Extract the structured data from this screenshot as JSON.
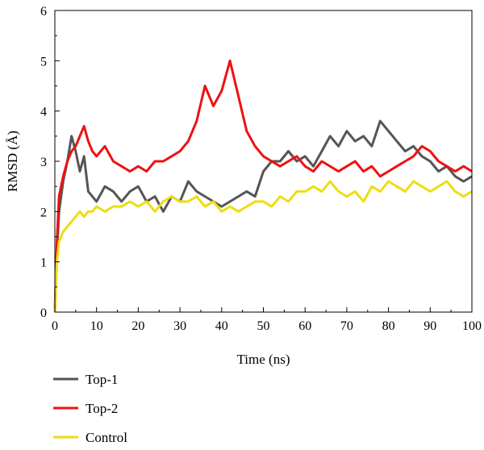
{
  "chart_data": {
    "type": "line",
    "xlabel": "Time (ns)",
    "ylabel": "RMSD (Å)",
    "xlim": [
      0,
      100
    ],
    "ylim": [
      0,
      6
    ],
    "xticks": [
      0,
      10,
      20,
      30,
      40,
      50,
      60,
      70,
      80,
      90,
      100
    ],
    "yticks": [
      0,
      1,
      2,
      3,
      4,
      5,
      6
    ],
    "grid": false,
    "legend_position": "bottom-left, below plot",
    "series": [
      {
        "name": "Top-1",
        "color": "#555555",
        "x": [
          0,
          0.5,
          1,
          2,
          3,
          4,
          5,
          6,
          7,
          8,
          9,
          10,
          12,
          14,
          16,
          18,
          20,
          22,
          24,
          26,
          28,
          30,
          32,
          34,
          36,
          38,
          40,
          42,
          44,
          46,
          48,
          50,
          52,
          54,
          56,
          58,
          60,
          62,
          64,
          66,
          68,
          70,
          72,
          74,
          76,
          78,
          80,
          82,
          84,
          86,
          88,
          90,
          92,
          94,
          96,
          98,
          100
        ],
        "y": [
          0,
          1.2,
          2.0,
          2.6,
          3.0,
          3.5,
          3.2,
          2.8,
          3.1,
          2.4,
          2.3,
          2.2,
          2.5,
          2.4,
          2.2,
          2.4,
          2.5,
          2.2,
          2.3,
          2.0,
          2.3,
          2.2,
          2.6,
          2.4,
          2.3,
          2.2,
          2.1,
          2.2,
          2.3,
          2.4,
          2.3,
          2.8,
          3.0,
          3.0,
          3.2,
          3.0,
          3.1,
          2.9,
          3.2,
          3.5,
          3.3,
          3.6,
          3.4,
          3.5,
          3.3,
          3.8,
          3.6,
          3.4,
          3.2,
          3.3,
          3.1,
          3.0,
          2.8,
          2.9,
          2.7,
          2.6,
          2.7
        ]
      },
      {
        "name": "Top-2",
        "color": "#ee1111",
        "x": [
          0,
          0.5,
          1,
          2,
          3,
          4,
          5,
          6,
          7,
          8,
          9,
          10,
          12,
          14,
          16,
          18,
          20,
          22,
          24,
          26,
          28,
          30,
          32,
          34,
          36,
          38,
          40,
          42,
          44,
          46,
          48,
          50,
          52,
          54,
          56,
          58,
          60,
          62,
          64,
          66,
          68,
          70,
          72,
          74,
          76,
          78,
          80,
          82,
          84,
          86,
          88,
          90,
          92,
          94,
          96,
          98,
          100
        ],
        "y": [
          0,
          1.4,
          2.3,
          2.7,
          3.0,
          3.2,
          3.3,
          3.5,
          3.7,
          3.4,
          3.2,
          3.1,
          3.3,
          3.0,
          2.9,
          2.8,
          2.9,
          2.8,
          3.0,
          3.0,
          3.1,
          3.2,
          3.4,
          3.8,
          4.5,
          4.1,
          4.4,
          5.0,
          4.3,
          3.6,
          3.3,
          3.1,
          3.0,
          2.9,
          3.0,
          3.1,
          2.9,
          2.8,
          3.0,
          2.9,
          2.8,
          2.9,
          3.0,
          2.8,
          2.9,
          2.7,
          2.8,
          2.9,
          3.0,
          3.1,
          3.3,
          3.2,
          3.0,
          2.9,
          2.8,
          2.9,
          2.8
        ]
      },
      {
        "name": "Control",
        "color": "#eedd11",
        "x": [
          0,
          0.5,
          1,
          2,
          3,
          4,
          5,
          6,
          7,
          8,
          9,
          10,
          12,
          14,
          16,
          18,
          20,
          22,
          24,
          26,
          28,
          30,
          32,
          34,
          36,
          38,
          40,
          42,
          44,
          46,
          48,
          50,
          52,
          54,
          56,
          58,
          60,
          62,
          64,
          66,
          68,
          70,
          72,
          74,
          76,
          78,
          80,
          82,
          84,
          86,
          88,
          90,
          92,
          94,
          96,
          98,
          100
        ],
        "y": [
          0,
          1.0,
          1.4,
          1.6,
          1.7,
          1.8,
          1.9,
          2.0,
          1.9,
          2.0,
          2.0,
          2.1,
          2.0,
          2.1,
          2.1,
          2.2,
          2.1,
          2.2,
          2.0,
          2.2,
          2.3,
          2.2,
          2.2,
          2.3,
          2.1,
          2.2,
          2.0,
          2.1,
          2.0,
          2.1,
          2.2,
          2.2,
          2.1,
          2.3,
          2.2,
          2.4,
          2.4,
          2.5,
          2.4,
          2.6,
          2.4,
          2.3,
          2.4,
          2.2,
          2.5,
          2.4,
          2.6,
          2.5,
          2.4,
          2.6,
          2.5,
          2.4,
          2.5,
          2.6,
          2.4,
          2.3,
          2.4
        ]
      }
    ]
  }
}
